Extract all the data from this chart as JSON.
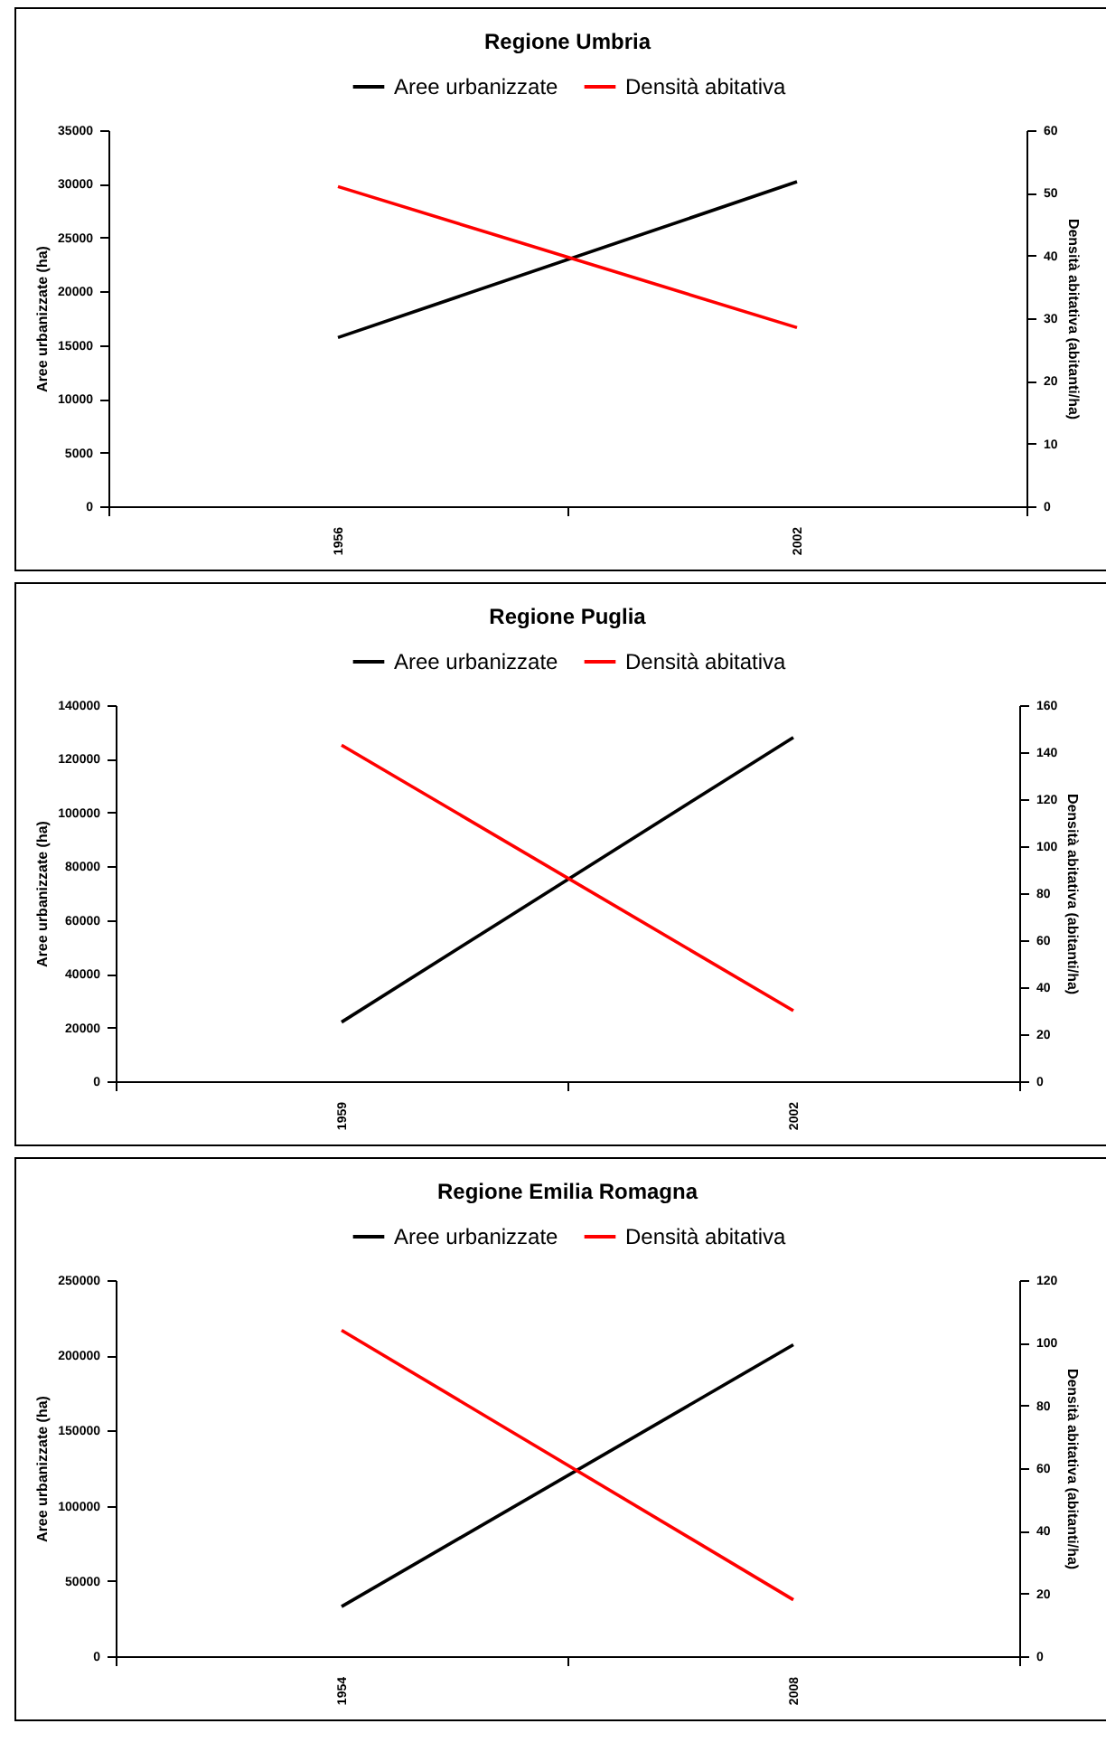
{
  "chart_data": [
    {
      "type": "line",
      "title": "Regione Umbria",
      "ylabel": "Aree urbanizzate (ha)",
      "y2label": "Densità abitativa (abitanti/ha)",
      "categories": [
        "1956",
        "2002"
      ],
      "legend": "top",
      "ylim": [
        0,
        35000
      ],
      "yticks": [
        0,
        5000,
        10000,
        15000,
        20000,
        25000,
        30000,
        35000
      ],
      "y2lim": [
        0,
        60
      ],
      "y2ticks": [
        0,
        10,
        20,
        30,
        40,
        50,
        60
      ],
      "series": [
        {
          "name": "Aree urbanizzate",
          "color": "#000000",
          "values": [
            15700,
            30200
          ]
        },
        {
          "name": "Densità abitativa",
          "color": "#ff0000",
          "axis": "y2",
          "values": [
            51,
            28.5
          ]
        }
      ]
    },
    {
      "type": "line",
      "title": "Regione Puglia",
      "ylabel": "Aree urbanizzate (ha)",
      "y2label": "Densità abitativa (abitanti/ha)",
      "categories": [
        "1959",
        "2002"
      ],
      "legend": "top",
      "ylim": [
        0,
        140000
      ],
      "yticks": [
        0,
        20000,
        40000,
        60000,
        80000,
        100000,
        120000,
        140000
      ],
      "y2lim": [
        0,
        160
      ],
      "y2ticks": [
        0,
        20,
        40,
        60,
        80,
        100,
        120,
        140,
        160
      ],
      "series": [
        {
          "name": "Aree urbanizzate",
          "color": "#000000",
          "values": [
            22000,
            128000
          ]
        },
        {
          "name": "Densità abitativa",
          "color": "#ff0000",
          "axis": "y2",
          "values": [
            143,
            30
          ]
        }
      ]
    },
    {
      "type": "line",
      "title": "Regione Emilia Romagna",
      "ylabel": "Aree urbanizzate (ha)",
      "y2label": "Densità abitativa (abitanti/ha)",
      "categories": [
        "1954",
        "2008"
      ],
      "legend": "top",
      "ylim": [
        0,
        250000
      ],
      "yticks": [
        0,
        50000,
        100000,
        150000,
        200000,
        250000
      ],
      "y2lim": [
        0,
        120
      ],
      "y2ticks": [
        0,
        20,
        40,
        60,
        80,
        100,
        120
      ],
      "series": [
        {
          "name": "Aree urbanizzate",
          "color": "#000000",
          "values": [
            33000,
            207000
          ]
        },
        {
          "name": "Densità abitativa",
          "color": "#ff0000",
          "axis": "y2",
          "values": [
            104,
            18
          ]
        }
      ]
    }
  ]
}
